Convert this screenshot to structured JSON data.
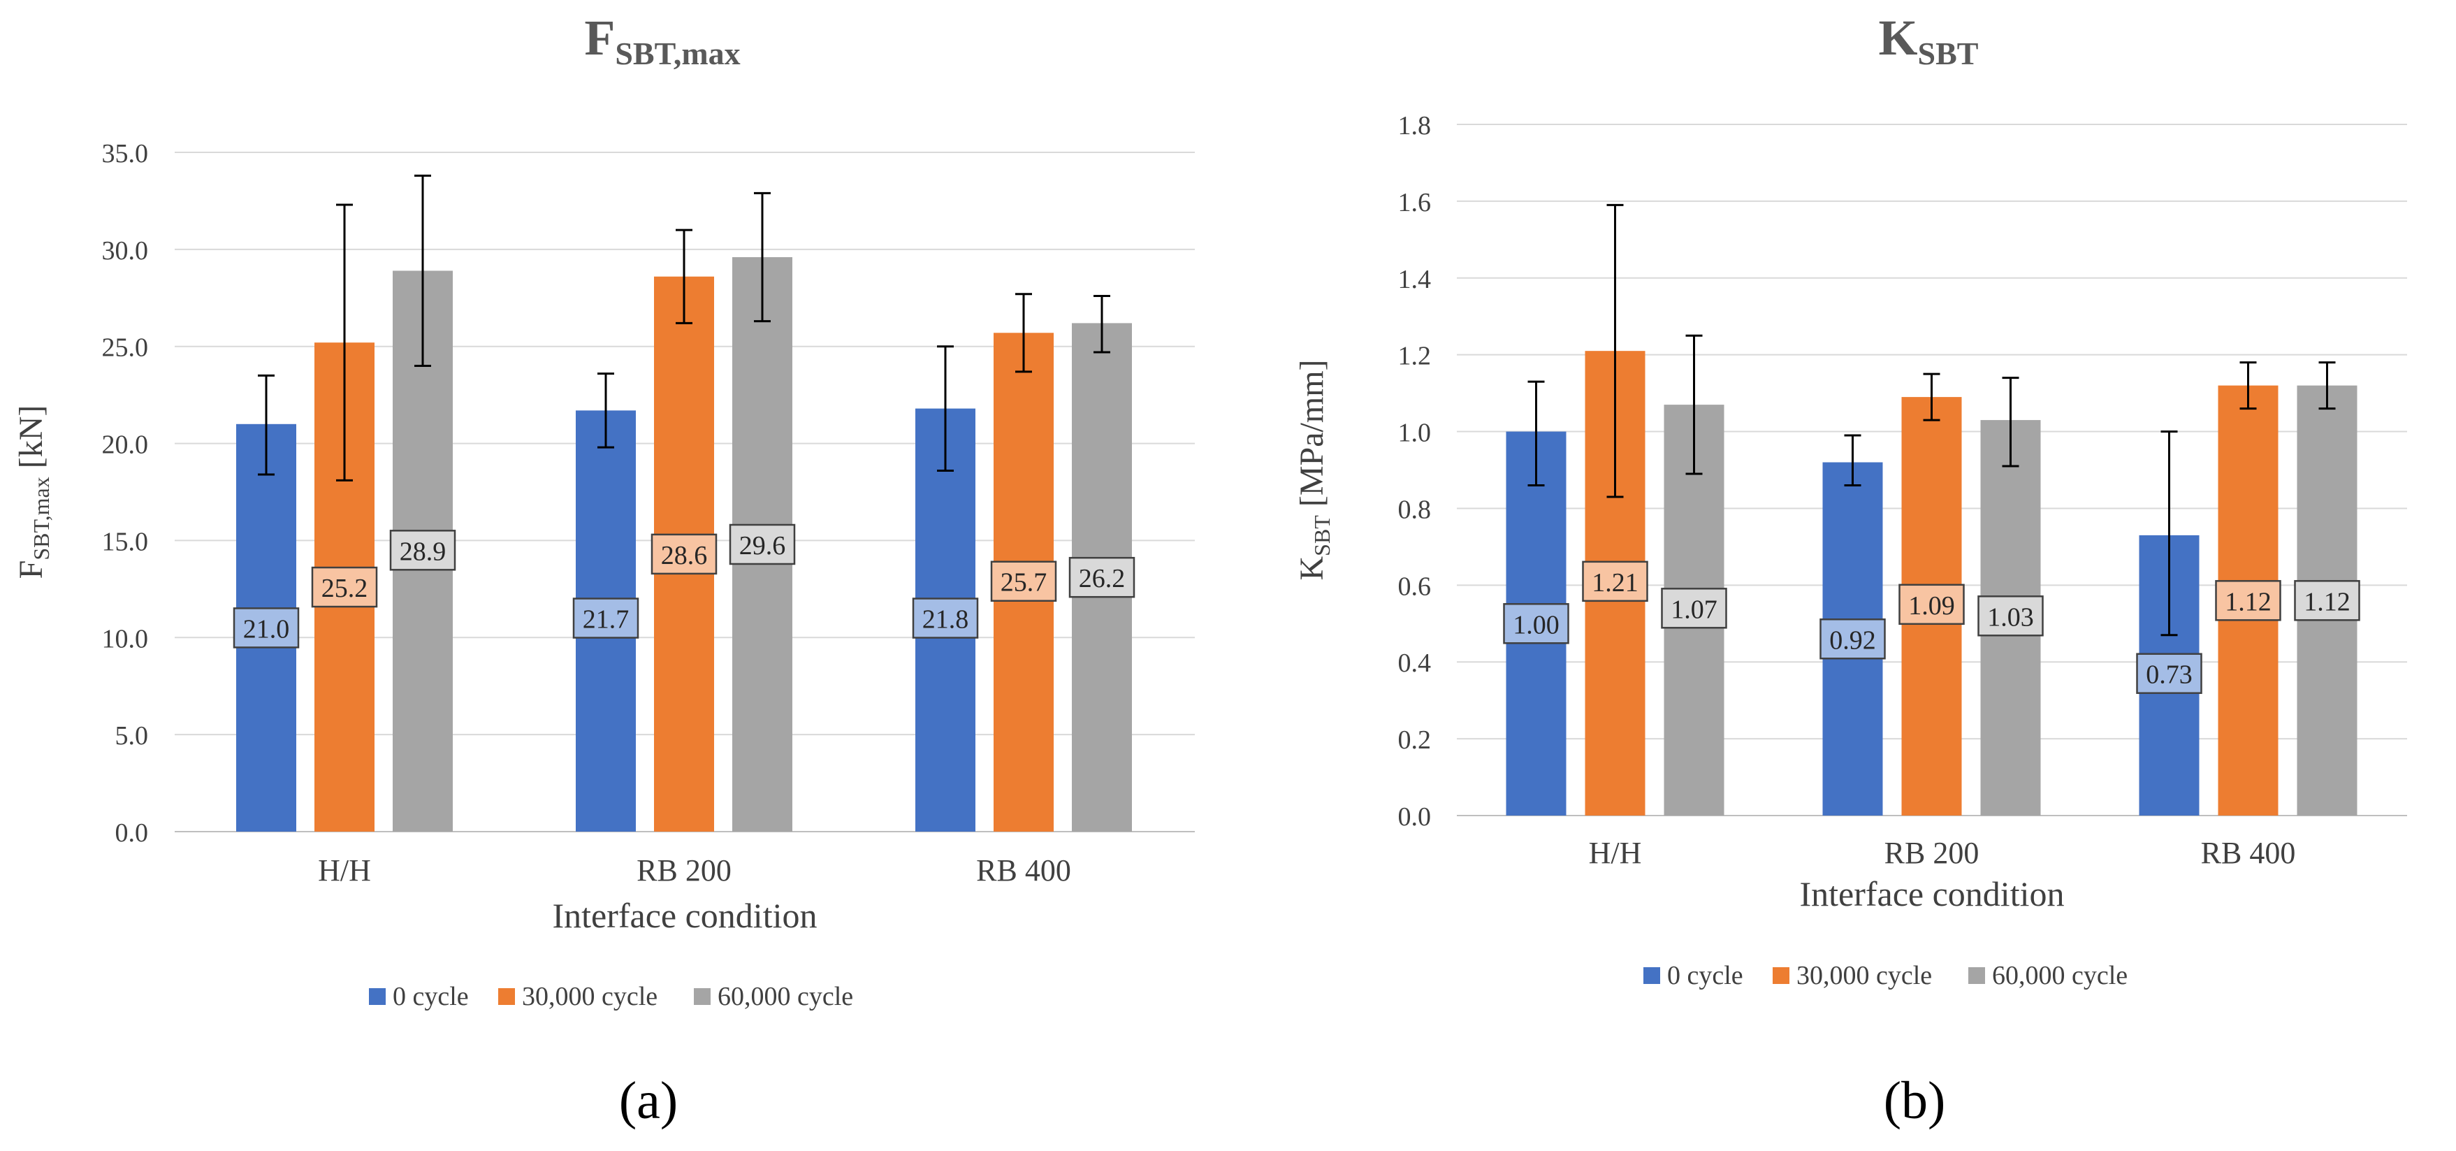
{
  "colors": {
    "series0": "#4472C4",
    "series1": "#ED7D31",
    "series2": "#A5A5A5",
    "series0_label_bg": "#A4BDE6",
    "series1_label_bg": "#F8C4A2",
    "series2_label_bg": "#D9D9D9",
    "grid": "#D9D9D9",
    "axis_text": "#404040",
    "title_text": "#595959",
    "error_bar": "#000000"
  },
  "chart_data": [
    {
      "type": "bar",
      "title": "FSBT,max",
      "title_main": "F",
      "title_sub": "SBT,max",
      "xlabel": "Interface condition",
      "ylabel": "FSBT,max [kN]",
      "ylabel_main": "F",
      "ylabel_sub": "SBT,max",
      "ylabel_unit": " [kN]",
      "ylim": [
        0,
        35
      ],
      "ytick_step": 5,
      "ytick_decimals": 1,
      "ytick_labels": [
        "0.0",
        "5.0",
        "10.0",
        "15.0",
        "20.0",
        "25.0",
        "30.0",
        "35.0"
      ],
      "grid": true,
      "legend_position": "bottom-center",
      "panel_label": "(a)",
      "categories": [
        "H/H",
        "RB 200",
        "RB 400"
      ],
      "series": [
        {
          "name": "0 cycle",
          "values": [
            21.0,
            21.7,
            21.8
          ],
          "labels": [
            "21.0",
            "21.7",
            "21.8"
          ],
          "err_low": [
            18.4,
            19.8,
            18.6
          ],
          "err_high": [
            23.5,
            23.6,
            25.0
          ],
          "label_at": [
            10.5,
            11.0,
            11.0
          ]
        },
        {
          "name": "30,000 cycle",
          "values": [
            25.2,
            28.6,
            25.7
          ],
          "labels": [
            "25.2",
            "28.6",
            "25.7"
          ],
          "err_low": [
            18.1,
            26.2,
            23.7
          ],
          "err_high": [
            32.3,
            31.0,
            27.7
          ],
          "label_at": [
            12.6,
            14.3,
            12.9
          ]
        },
        {
          "name": "60,000 cycle",
          "values": [
            28.9,
            29.6,
            26.2
          ],
          "labels": [
            "28.9",
            "29.6",
            "26.2"
          ],
          "err_low": [
            24.0,
            26.3,
            24.7
          ],
          "err_high": [
            33.8,
            32.9,
            27.6
          ],
          "label_at": [
            14.5,
            14.8,
            13.1
          ]
        }
      ]
    },
    {
      "type": "bar",
      "title": "KSBT",
      "title_main": "K",
      "title_sub": "SBT",
      "xlabel": "Interface condition",
      "ylabel": "KSBT [MPa/mm]",
      "ylabel_main": "K",
      "ylabel_sub": "SBT",
      "ylabel_unit": " [MPa/mm]",
      "ylim": [
        0,
        1.8
      ],
      "ytick_step": 0.2,
      "ytick_decimals": 1,
      "ytick_labels": [
        "0.0",
        "0.2",
        "0.4",
        "0.6",
        "0.8",
        "1.0",
        "1.2",
        "1.4",
        "1.6",
        "1.8"
      ],
      "grid": true,
      "legend_position": "bottom-center",
      "panel_label": "(b)",
      "categories": [
        "H/H",
        "RB 200",
        "RB 400"
      ],
      "series": [
        {
          "name": "0 cycle",
          "values": [
            1.0,
            0.92,
            0.73
          ],
          "labels": [
            "1.00",
            "0.92",
            "0.73"
          ],
          "err_low": [
            0.86,
            0.86,
            0.47
          ],
          "err_high": [
            1.13,
            0.99,
            1.0
          ],
          "label_at": [
            0.5,
            0.46,
            0.37
          ]
        },
        {
          "name": "30,000 cycle",
          "values": [
            1.21,
            1.09,
            1.12
          ],
          "labels": [
            "1.21",
            "1.09",
            "1.12"
          ],
          "err_low": [
            0.83,
            1.03,
            1.06
          ],
          "err_high": [
            1.59,
            1.15,
            1.18
          ],
          "label_at": [
            0.61,
            0.55,
            0.56
          ]
        },
        {
          "name": "60,000 cycle",
          "values": [
            1.07,
            1.03,
            1.12
          ],
          "labels": [
            "1.07",
            "1.03",
            "1.12"
          ],
          "err_low": [
            0.89,
            0.91,
            1.06
          ],
          "err_high": [
            1.25,
            1.14,
            1.18
          ],
          "label_at": [
            0.54,
            0.52,
            0.56
          ]
        }
      ]
    }
  ]
}
